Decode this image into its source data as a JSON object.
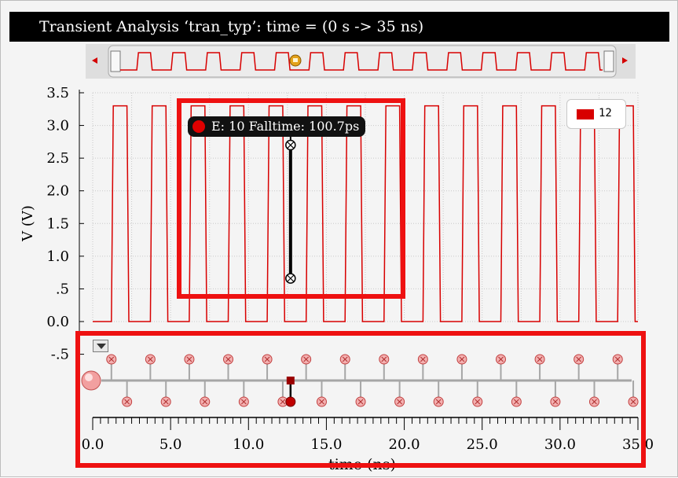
{
  "window": {
    "title": "Transient Analysis ‘tran_typ’: time = (0 s -> 35 ns)"
  },
  "chart_data": {
    "type": "line",
    "xlabel": "time (ns)",
    "ylabel": "V (V)",
    "xlim": [
      0.0,
      35.0
    ],
    "ylim": [
      -0.5,
      3.5
    ],
    "x_ticks": [
      "0.0",
      "5.0",
      "10.0",
      "15.0",
      "20.0",
      "25.0",
      "30.0",
      "35.0"
    ],
    "y_ticks": [
      {
        "v": 3.5,
        "label": "3.5"
      },
      {
        "v": 3.0,
        "label": "3.0"
      },
      {
        "v": 2.5,
        "label": "2.5"
      },
      {
        "v": 2.0,
        "label": "2.0"
      },
      {
        "v": 1.5,
        "label": "1.5"
      },
      {
        "v": 1.0,
        "label": "1.0"
      },
      {
        "v": 0.5,
        "label": ".5"
      },
      {
        "v": 0.0,
        "label": "0.0"
      },
      {
        "v": -0.5,
        "label": "-.5"
      }
    ],
    "grid": true,
    "legend_position": "top-right",
    "series": [
      {
        "name": "12",
        "color": "#d80000",
        "period_ns": 2.5,
        "first_rise_ns": 1.2,
        "high_v": 3.3,
        "low_v": 0.0,
        "edge_ns": 0.12
      }
    ],
    "events": {
      "rising_edges_ns": [
        1.2,
        3.7,
        6.2,
        8.7,
        11.2,
        13.7,
        16.2,
        18.7,
        21.2,
        23.7,
        26.2,
        28.7,
        31.2,
        33.7
      ],
      "falling_edges_ns": [
        2.2,
        4.7,
        7.2,
        9.7,
        12.2,
        14.7,
        17.2,
        19.7,
        22.2,
        24.7,
        27.2,
        29.7,
        32.2,
        34.7
      ],
      "selected_index": 10
    },
    "annotation": {
      "text": "E: 10 Falltime: 100.7ps",
      "time_ns": 12.7,
      "v_high": 2.7,
      "v_low": 0.66
    }
  },
  "colors": {
    "trace": "#d80000",
    "highlight": "#ee1111",
    "title_bg": "#000000",
    "grid": "#c8c8c8"
  },
  "icons": {
    "scroll_left": "arrow-left-icon",
    "scroll_right": "arrow-right-icon",
    "scroll_thumb": "lock-icon",
    "event_menu": "triangle-down-icon"
  }
}
